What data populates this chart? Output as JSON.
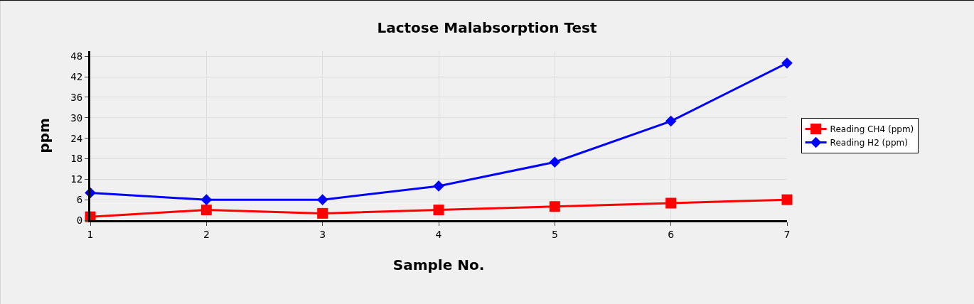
{
  "chart_data": {
    "type": "line",
    "title": "Lactose Malabsorption Test",
    "xlabel": "Sample No.",
    "ylabel": "ppm",
    "x": [
      1,
      2,
      3,
      4,
      5,
      6,
      7
    ],
    "xlim": [
      1,
      7
    ],
    "xticks": [
      1,
      2,
      3,
      4,
      5,
      6,
      7
    ],
    "ylim": [
      0,
      49.5
    ],
    "yticks": [
      0,
      6,
      12,
      18,
      24,
      30,
      36,
      42,
      48
    ],
    "series": [
      {
        "name": "Reading CH4 (ppm)",
        "color": "#ff0000",
        "marker": "square",
        "values": [
          1,
          3,
          2,
          3,
          4,
          5,
          6
        ]
      },
      {
        "name": "Reading H2 (ppm)",
        "color": "#0000ff",
        "marker": "diamond",
        "values": [
          8,
          6,
          6,
          10,
          17,
          29,
          46
        ]
      }
    ],
    "grid": true,
    "legend": "right",
    "line_style": "solid"
  }
}
